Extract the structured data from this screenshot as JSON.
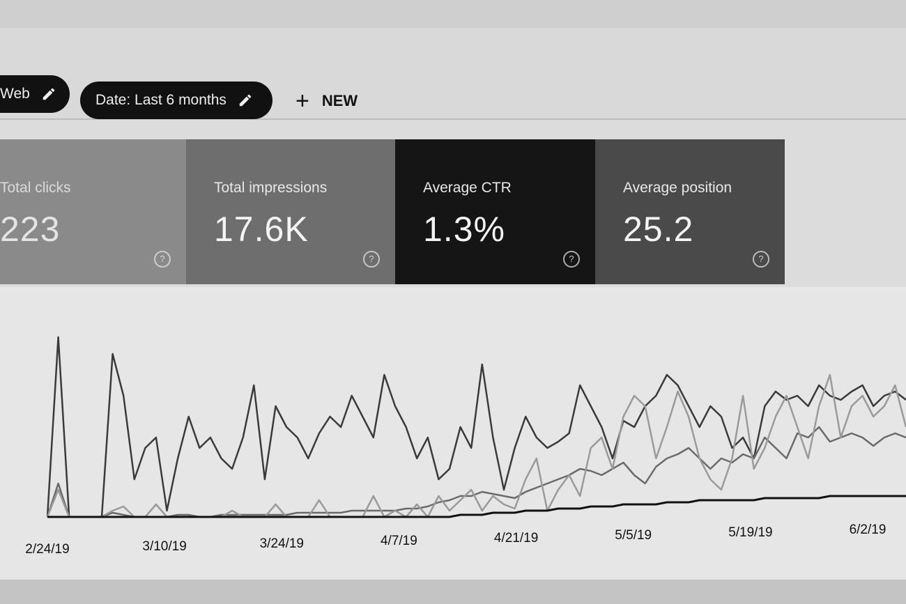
{
  "filters": {
    "chips": [
      {
        "label": "Web",
        "icon": "pencil-icon"
      },
      {
        "label": "Date: Last 6 months",
        "icon": "pencil-icon"
      }
    ],
    "new_button": {
      "icon": "plus-icon",
      "label": "NEW"
    }
  },
  "metrics": [
    {
      "title": "Total clicks",
      "value": "223",
      "icon": "help-icon",
      "color": "#8a8a8a"
    },
    {
      "title": "Total impressions",
      "value": "17.6K",
      "icon": "help-icon",
      "color": "#6e6e6e"
    },
    {
      "title": "Average CTR",
      "value": "1.3%",
      "icon": "help-icon",
      "color": "#151515"
    },
    {
      "title": "Average position",
      "value": "25.2",
      "icon": "help-icon",
      "color": "#4a4a4a"
    }
  ],
  "chart_data": {
    "type": "line",
    "x_tick_labels": [
      "2/24/19",
      "3/10/19",
      "3/24/19",
      "4/7/19",
      "4/21/19",
      "5/5/19",
      "5/19/19",
      "6/2/19"
    ],
    "grid": false,
    "series": [
      {
        "color": "#3a3a3a",
        "values": [
          0.02,
          0.88,
          0.02,
          0.02,
          0.02,
          0.02,
          0.8,
          0.6,
          0.2,
          0.35,
          0.4,
          0.05,
          0.3,
          0.5,
          0.35,
          0.4,
          0.3,
          0.25,
          0.4,
          0.65,
          0.2,
          0.55,
          0.45,
          0.4,
          0.3,
          0.42,
          0.5,
          0.45,
          0.6,
          0.5,
          0.4,
          0.7,
          0.55,
          0.45,
          0.3,
          0.4,
          0.2,
          0.25,
          0.45,
          0.35,
          0.75,
          0.4,
          0.15,
          0.35,
          0.5,
          0.4,
          0.35,
          0.38,
          0.42,
          0.65,
          0.55,
          0.45,
          0.3,
          0.48,
          0.45,
          0.55,
          0.6,
          0.7,
          0.65,
          0.55,
          0.45,
          0.55,
          0.5,
          0.35,
          0.4,
          0.3,
          0.55,
          0.62,
          0.58,
          0.6,
          0.55,
          0.65,
          0.6,
          0.58,
          0.62,
          0.65,
          0.55,
          0.6,
          0.62,
          0.58
        ]
      },
      {
        "color": "#6a6a6a",
        "values": [
          0.02,
          0.18,
          0.02,
          0.02,
          0.02,
          0.02,
          0.04,
          0.03,
          0.02,
          0.02,
          0.02,
          0.02,
          0.03,
          0.03,
          0.02,
          0.02,
          0.03,
          0.03,
          0.03,
          0.03,
          0.03,
          0.03,
          0.03,
          0.04,
          0.04,
          0.04,
          0.04,
          0.04,
          0.05,
          0.05,
          0.05,
          0.05,
          0.05,
          0.06,
          0.06,
          0.07,
          0.09,
          0.1,
          0.12,
          0.12,
          0.14,
          0.13,
          0.12,
          0.11,
          0.14,
          0.16,
          0.18,
          0.2,
          0.22,
          0.25,
          0.24,
          0.22,
          0.25,
          0.28,
          0.22,
          0.18,
          0.26,
          0.3,
          0.32,
          0.35,
          0.3,
          0.25,
          0.3,
          0.28,
          0.32,
          0.3,
          0.4,
          0.35,
          0.3,
          0.42,
          0.4,
          0.45,
          0.38,
          0.4,
          0.42,
          0.4,
          0.36,
          0.4,
          0.42,
          0.4
        ]
      },
      {
        "color": "#9a9a9a",
        "values": [
          0.02,
          0.15,
          0.02,
          0.02,
          0.02,
          0.02,
          0.05,
          0.07,
          0.02,
          0.02,
          0.08,
          0.02,
          0.02,
          0.02,
          0.02,
          0.02,
          0.02,
          0.05,
          0.02,
          0.02,
          0.02,
          0.08,
          0.02,
          0.02,
          0.02,
          0.1,
          0.02,
          0.02,
          0.02,
          0.02,
          0.12,
          0.02,
          0.05,
          0.02,
          0.08,
          0.02,
          0.12,
          0.05,
          0.1,
          0.15,
          0.05,
          0.12,
          0.08,
          0.06,
          0.2,
          0.3,
          0.05,
          0.15,
          0.22,
          0.12,
          0.35,
          0.4,
          0.25,
          0.5,
          0.6,
          0.55,
          0.3,
          0.45,
          0.62,
          0.5,
          0.3,
          0.2,
          0.15,
          0.3,
          0.6,
          0.25,
          0.35,
          0.5,
          0.6,
          0.45,
          0.3,
          0.55,
          0.7,
          0.4,
          0.55,
          0.6,
          0.5,
          0.55,
          0.65,
          0.45
        ]
      },
      {
        "color": "#111111",
        "values": [
          0.02,
          0.02,
          0.02,
          0.02,
          0.02,
          0.02,
          0.02,
          0.02,
          0.02,
          0.02,
          0.02,
          0.02,
          0.02,
          0.02,
          0.02,
          0.02,
          0.02,
          0.02,
          0.02,
          0.02,
          0.02,
          0.02,
          0.02,
          0.02,
          0.02,
          0.02,
          0.02,
          0.02,
          0.02,
          0.02,
          0.02,
          0.02,
          0.02,
          0.02,
          0.02,
          0.02,
          0.02,
          0.02,
          0.03,
          0.03,
          0.03,
          0.04,
          0.04,
          0.04,
          0.05,
          0.05,
          0.05,
          0.06,
          0.06,
          0.06,
          0.07,
          0.07,
          0.07,
          0.08,
          0.08,
          0.08,
          0.08,
          0.09,
          0.09,
          0.09,
          0.1,
          0.1,
          0.1,
          0.1,
          0.1,
          0.1,
          0.11,
          0.11,
          0.11,
          0.11,
          0.11,
          0.11,
          0.12,
          0.12,
          0.12,
          0.12,
          0.12,
          0.12,
          0.12,
          0.12
        ]
      }
    ]
  }
}
